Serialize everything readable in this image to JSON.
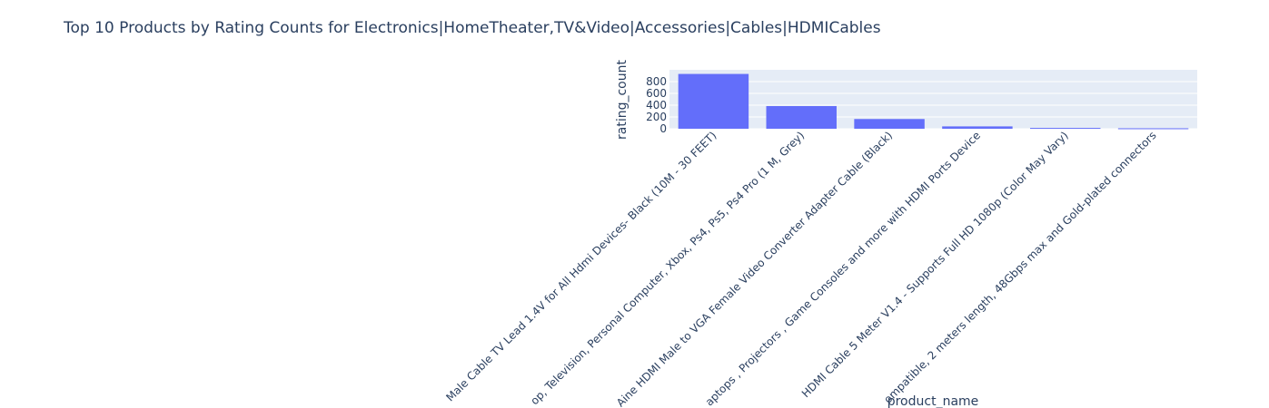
{
  "chart_data": {
    "type": "bar",
    "title": "Top 10 Products by Rating Counts for Electronics|HomeTheater,TV&Video|Accessories|Cables|HDMICables",
    "xlabel": "product_name",
    "ylabel": "rating_count",
    "ylim": [
      0,
      1000
    ],
    "yticks": [
      0,
      200,
      400,
      600,
      800
    ],
    "grid": true,
    "categories": [
      "Male Cable TV Lead 1.4V for All Hdmi Devices- Black (10M - 30 FEET)",
      "op, Television, Personal Computer, Xbox, Ps4, Ps5, Ps4 Pro (1 M, Grey)",
      "Aine HDMI Male to VGA Female Video Converter Adapter Cable (Black)",
      "aptops , Projectors , Game Consoles and more with HDMI Ports Device",
      "HDMI Cable 5 Meter V1.4 - Supports Full HD 1080p (Color May Vary)",
      "ompatible, 2 meters length, 48Gbps max and Gold-plated connectors"
    ],
    "values": [
      930,
      385,
      165,
      40,
      14,
      8
    ],
    "colors": {
      "bar": "#636efa",
      "plot_bg": "#e5ecf6",
      "grid": "#ffffff",
      "text": "#2a3f5f"
    }
  }
}
